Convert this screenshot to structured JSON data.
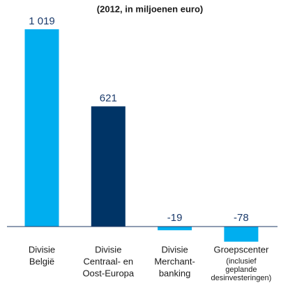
{
  "chart_data": {
    "type": "bar",
    "subtitle": "(2012, in miljoenen euro)",
    "categories": [
      [
        "Divisie",
        "België"
      ],
      [
        "Divisie",
        "Centraal- en",
        "Oost-Europa"
      ],
      [
        "Divisie",
        "Merchant-",
        "banking"
      ],
      [
        "Groepscenter",
        "(inclusief",
        "geplande",
        "desinvesteringen)"
      ]
    ],
    "values": [
      1019,
      621,
      -19,
      -78
    ],
    "value_labels": [
      "1 019",
      "621",
      "-19",
      "-78"
    ],
    "colors": [
      "#00aeef",
      "#003466",
      "#00aeef",
      "#00aeef"
    ]
  }
}
